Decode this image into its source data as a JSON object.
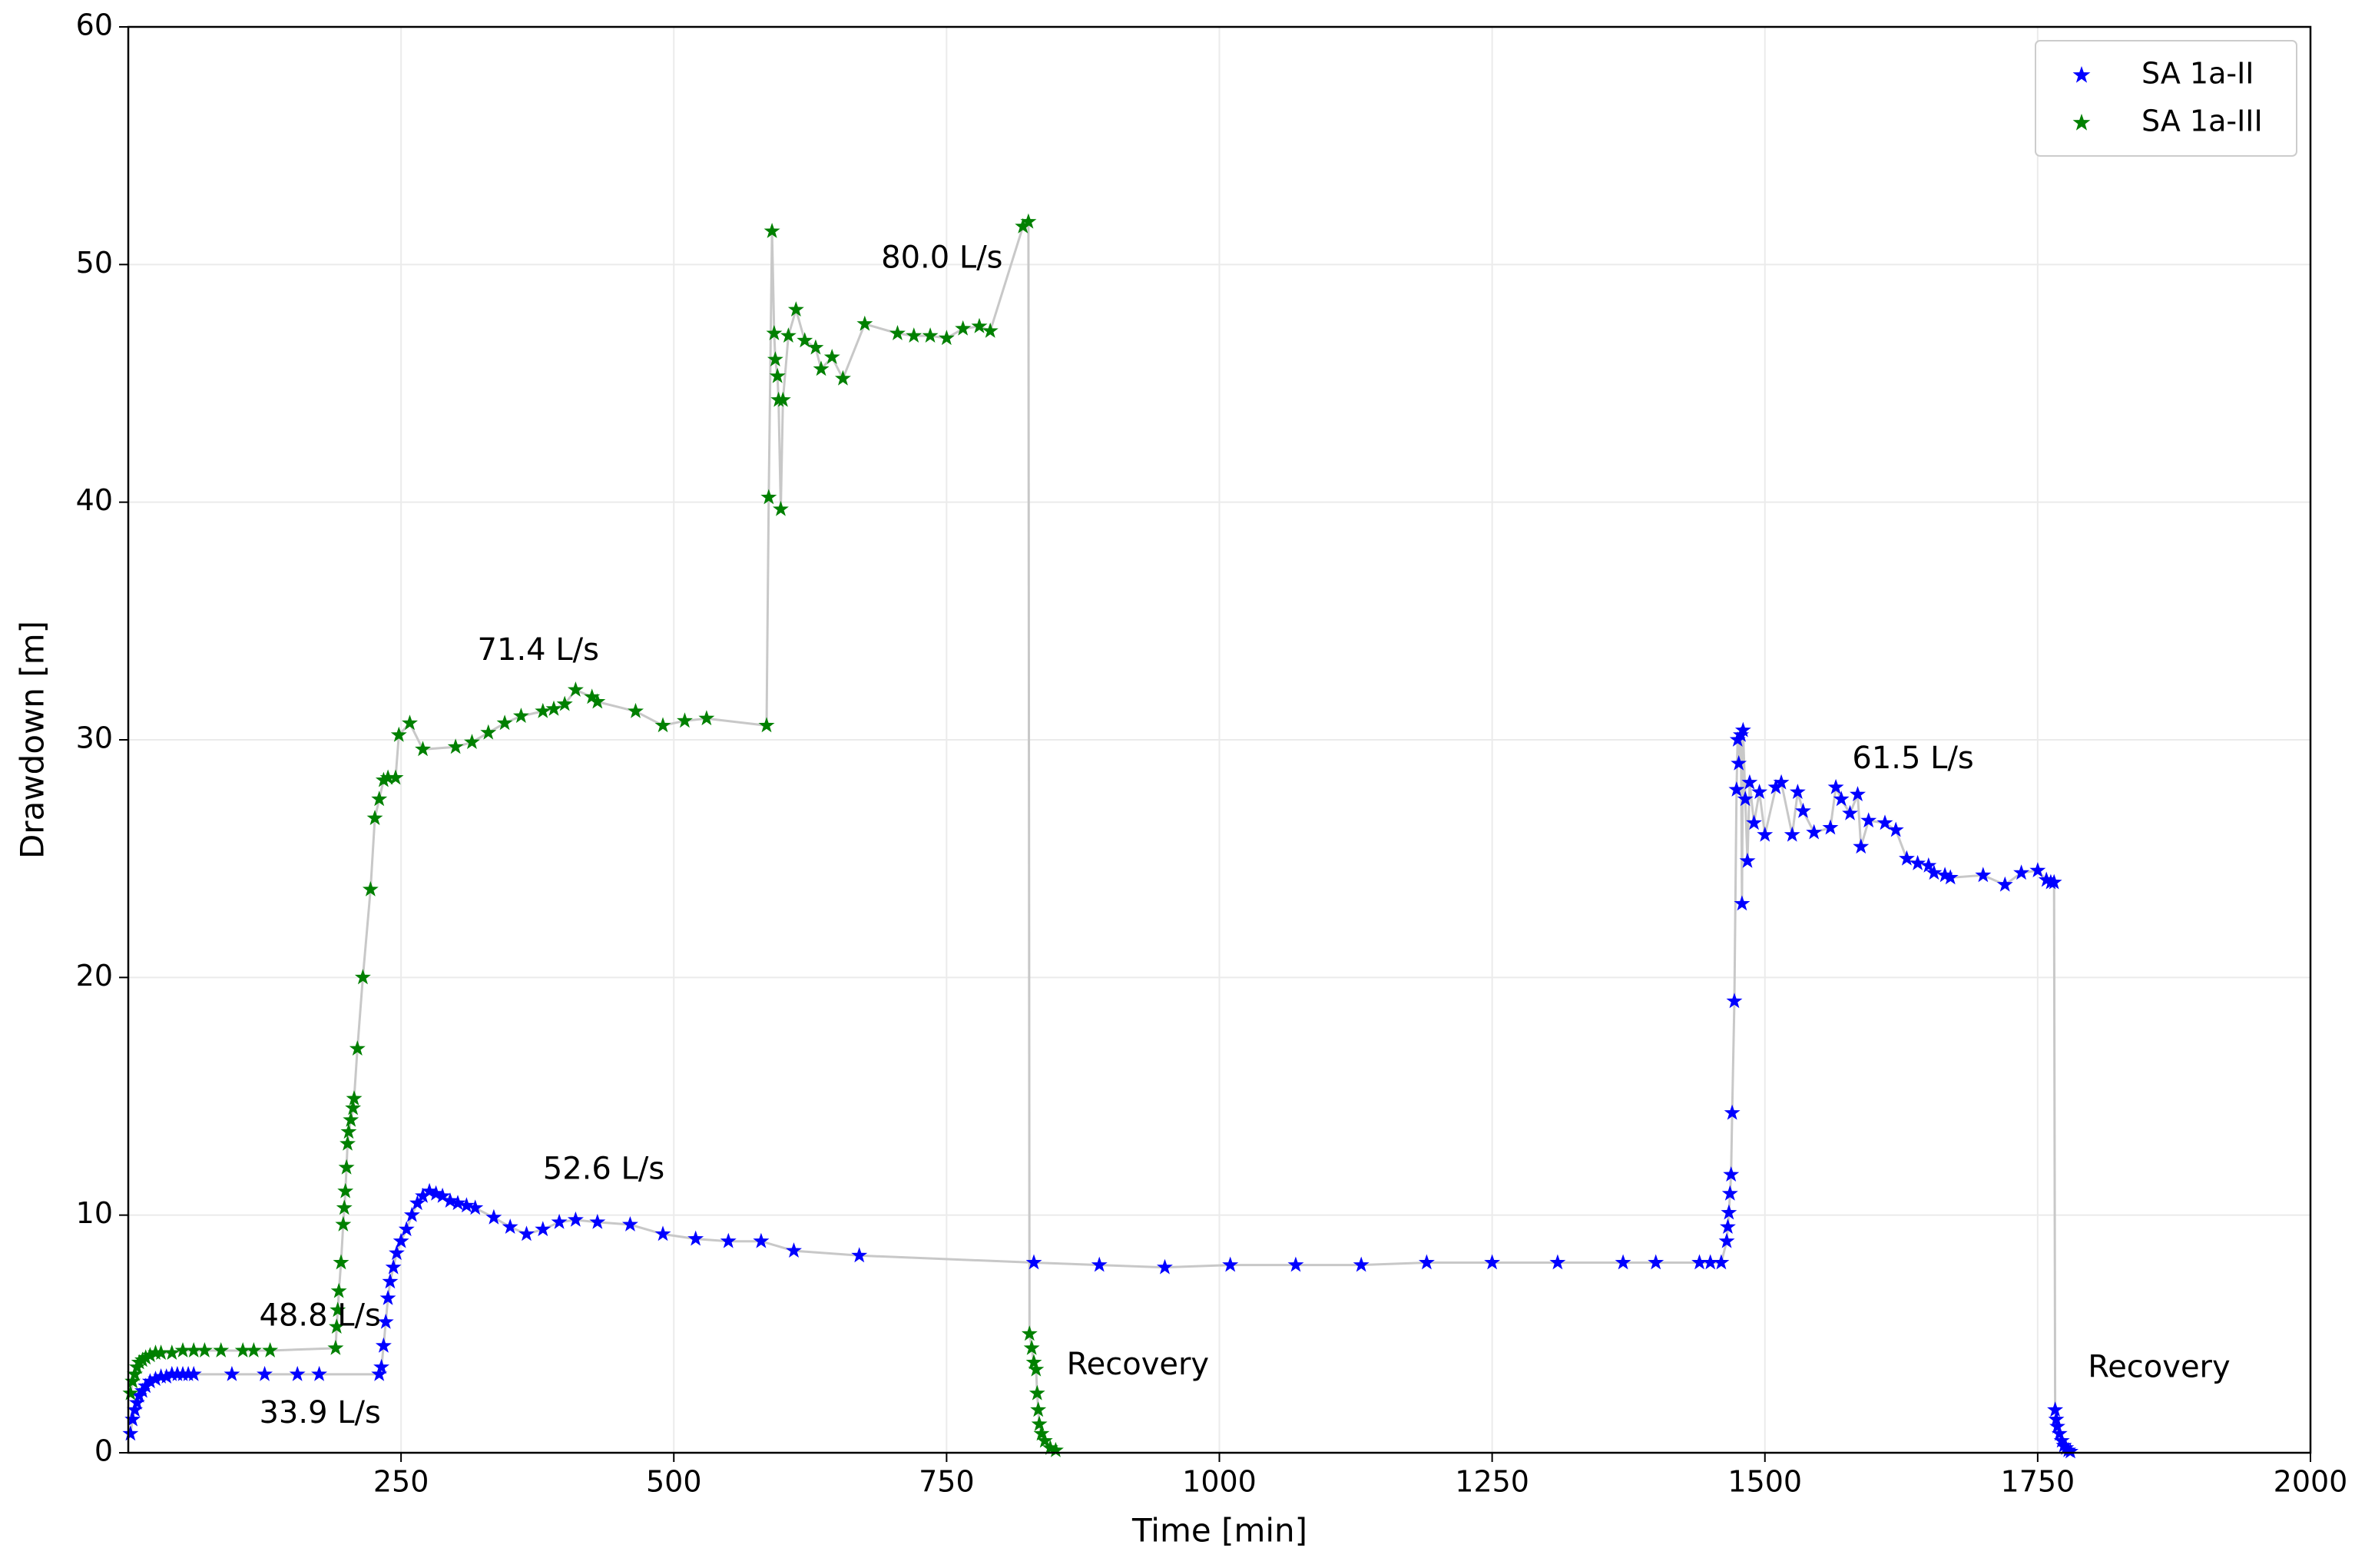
{
  "chart_data": {
    "type": "scatter",
    "xlabel": "Time [min]",
    "ylabel": "Drawdown [m]",
    "xlim": [
      0,
      2000
    ],
    "xticks": [
      250,
      500,
      750,
      1000,
      1250,
      1500,
      1750,
      2000
    ],
    "ylim": [
      0,
      60
    ],
    "yticks": [
      0,
      10,
      20,
      30,
      40,
      50,
      60
    ],
    "grid": true,
    "legend": "upper right",
    "line_color": "#c8c8c8",
    "annotations": [
      "48.8 L/s",
      "33.9 L/s",
      "71.4 L/s",
      "52.6 L/s",
      "80.0 L/s",
      "61.5 L/s",
      "Recovery",
      "Recovery"
    ],
    "series": [
      {
        "name": "SA 1a-II",
        "color": "#0000ff",
        "x": [
          2,
          4,
          6,
          8,
          10,
          13,
          16,
          20,
          25,
          30,
          35,
          40,
          45,
          50,
          55,
          60,
          95,
          125,
          155,
          175,
          230,
          232,
          234,
          236,
          238,
          240,
          243,
          246,
          250,
          255,
          260,
          265,
          270,
          276,
          282,
          288,
          295,
          302,
          310,
          318,
          335,
          350,
          365,
          380,
          395,
          410,
          430,
          460,
          490,
          520,
          550,
          580,
          610,
          670,
          830,
          890,
          950,
          1010,
          1070,
          1130,
          1190,
          1250,
          1310,
          1370,
          1400,
          1440,
          1450,
          1460,
          1465,
          1466,
          1467,
          1468,
          1469,
          1470,
          1472,
          1474,
          1475,
          1476,
          1478,
          1479,
          1480,
          1482,
          1484,
          1486,
          1490,
          1495,
          1500,
          1510,
          1515,
          1525,
          1530,
          1535,
          1545,
          1560,
          1565,
          1570,
          1578,
          1585,
          1588,
          1595,
          1610,
          1620,
          1630,
          1640,
          1650,
          1655,
          1665,
          1670,
          1700,
          1720,
          1735,
          1750,
          1758,
          1762,
          1765,
          1766,
          1767,
          1768,
          1770,
          1772,
          1774,
          1776,
          1778,
          1780
        ],
        "values": [
          0.8,
          1.4,
          1.8,
          2.1,
          2.4,
          2.6,
          2.8,
          3.0,
          3.1,
          3.2,
          3.2,
          3.3,
          3.3,
          3.3,
          3.3,
          3.3,
          3.3,
          3.3,
          3.3,
          3.3,
          3.3,
          3.6,
          4.5,
          5.5,
          6.5,
          7.2,
          7.8,
          8.4,
          8.9,
          9.4,
          10,
          10.5,
          10.8,
          11,
          10.9,
          10.8,
          10.6,
          10.5,
          10.4,
          10.3,
          9.9,
          9.5,
          9.2,
          9.4,
          9.7,
          9.8,
          9.7,
          9.6,
          9.2,
          9.0,
          8.9,
          8.9,
          8.5,
          8.3,
          8.0,
          7.9,
          7.8,
          7.9,
          7.9,
          7.9,
          8,
          8,
          8,
          8,
          8,
          8,
          8,
          8,
          8.9,
          9.5,
          10.1,
          10.9,
          11.7,
          14.3,
          19,
          27.9,
          30,
          29,
          30.2,
          23.1,
          30.4,
          27.5,
          24.9,
          28.2,
          26.5,
          27.8,
          26,
          28,
          28.2,
          26,
          27.8,
          27,
          26.1,
          26.3,
          28,
          27.5,
          26.9,
          27.7,
          25.5,
          26.6,
          26.5,
          26.2,
          25,
          24.8,
          24.7,
          24.4,
          24.3,
          24.2,
          24.3,
          23.9,
          24.4,
          24.5,
          24.1,
          24,
          24,
          1.8,
          1.4,
          1.1,
          0.8,
          0.5,
          0.3,
          0.2,
          0.1,
          0.05
        ]
      },
      {
        "name": "SA 1a-III",
        "color": "#008000",
        "x": [
          2,
          4,
          6,
          8,
          10,
          13,
          16,
          20,
          25,
          30,
          40,
          50,
          60,
          70,
          85,
          105,
          115,
          130,
          190,
          191,
          192,
          193,
          195,
          197,
          198,
          199,
          200,
          201,
          202,
          204,
          206,
          207,
          210,
          215,
          222,
          226,
          230,
          234,
          238,
          245,
          248,
          258,
          270,
          300,
          315,
          330,
          345,
          360,
          380,
          390,
          400,
          410,
          425,
          430,
          465,
          490,
          510,
          530,
          585,
          587,
          590,
          592,
          593,
          595,
          596,
          598,
          600,
          605,
          612,
          620,
          630,
          635,
          645,
          655,
          675,
          705,
          720,
          735,
          750,
          765,
          780,
          790,
          820,
          825,
          826,
          828,
          830,
          832,
          833,
          834,
          835,
          837,
          840,
          845,
          850
        ],
        "values": [
          2.5,
          3.0,
          3.3,
          3.6,
          3.8,
          3.9,
          4.0,
          4.1,
          4.2,
          4.2,
          4.2,
          4.3,
          4.3,
          4.3,
          4.3,
          4.3,
          4.3,
          4.3,
          4.4,
          5.3,
          6,
          6.8,
          8,
          9.6,
          10.3,
          11,
          12,
          13,
          13.5,
          14,
          14.5,
          14.9,
          17,
          20,
          23.7,
          26.7,
          27.5,
          28.3,
          28.4,
          28.4,
          30.2,
          30.7,
          29.6,
          29.7,
          29.9,
          30.3,
          30.7,
          31,
          31.2,
          31.3,
          31.5,
          32.1,
          31.8,
          31.6,
          31.2,
          30.6,
          30.8,
          30.9,
          30.6,
          40.2,
          51.4,
          47.1,
          46,
          45.3,
          44.3,
          39.7,
          44.3,
          47,
          48.1,
          46.8,
          46.5,
          45.6,
          46.1,
          45.2,
          47.5,
          47.1,
          47,
          47,
          46.9,
          47.3,
          47.4,
          47.2,
          51.6,
          51.8,
          5,
          4.4,
          3.8,
          3.5,
          2.5,
          1.8,
          1.2,
          0.8,
          0.5,
          0.2,
          0.1
        ]
      }
    ]
  }
}
